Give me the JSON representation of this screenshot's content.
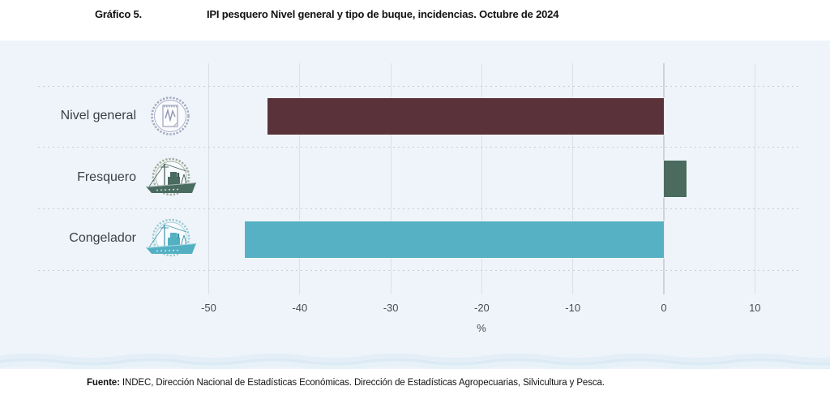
{
  "header": {
    "figure_label": "Gráfico 5.",
    "title": "IPI pesquero Nivel general y tipo de buque, incidencias. Octubre de 2024"
  },
  "chart_data": {
    "type": "bar",
    "orientation": "horizontal",
    "title": "IPI pesquero Nivel general y tipo de buque, incidencias. Octubre de 2024",
    "categories": [
      "Nivel general",
      "Fresquero",
      "Congelador"
    ],
    "values": [
      -43.5,
      2.5,
      -46.0
    ],
    "unit": "%",
    "xlabel": "%",
    "x_ticks": [
      -50,
      -40,
      -30,
      -20,
      -10,
      0,
      10
    ],
    "xlim": [
      -50.5,
      18.5
    ],
    "grid": {
      "vertical_gridlines": true,
      "row_separators": "dotted",
      "zeroline": true
    },
    "legend": {
      "visible": false
    },
    "bar_colors": [
      "#5a333a",
      "#4a6b5e",
      "#55b1c3"
    ],
    "icons": [
      "document-chart-badge-icon",
      "fresquero-ship-badge-icon",
      "congelador-ship-badge-icon"
    ]
  },
  "footer": {
    "source_label": "Fuente:",
    "source_text": " INDEC, Dirección Nacional de Estadísticas Económicas. Dirección de Estadísticas Agropecuarias, Silvicultura y Pesca."
  },
  "colors": {
    "panel_background": "#eff4fa",
    "gridline": "#dbdfe6",
    "zeroline": "#cfd3d9",
    "nivel_general_bar": "#5a333a",
    "fresquero_bar": "#4a6b5e",
    "congelador_bar": "#55b1c3",
    "label_text": "#3b4048",
    "tick_text": "#474c54"
  }
}
